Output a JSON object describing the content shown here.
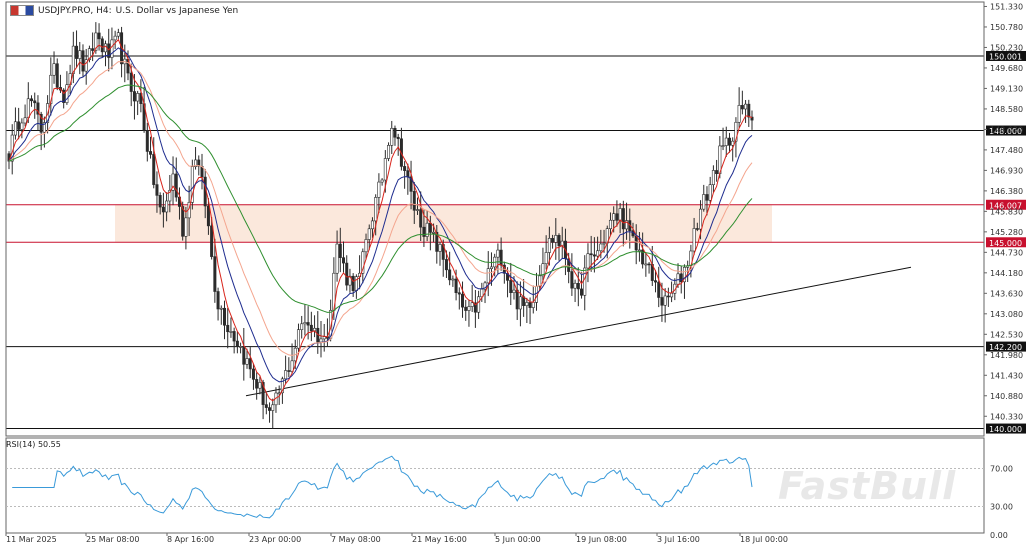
{
  "header": {
    "symbol": "USDJPY.PRO, H4:",
    "description": "U.S. Dollar vs Japanese Yen"
  },
  "watermark": "FastBull",
  "colors": {
    "candle": "#2b2b2b",
    "ma_fast": "#d9251c",
    "ma_mid": "#1f2d8f",
    "ma_salmon": "#f4a58e",
    "ma_slow": "#2f8f2f",
    "zone_fill": "#fbe8dc",
    "resistance_line": "#c8102e",
    "rsi_line": "#3a9ad9"
  },
  "chart_data": {
    "type": "candlestick",
    "symbol": "USDJPY.PRO",
    "timeframe": "H4",
    "ylim": [
      139.8,
      151.45
    ],
    "y_ticks": [
      "151.330",
      "150.780",
      "150.230",
      "149.680",
      "149.130",
      "148.580",
      "148.030",
      "147.480",
      "146.930",
      "146.380",
      "145.830",
      "145.280",
      "144.730",
      "144.180",
      "143.630",
      "143.080",
      "142.530",
      "141.980",
      "141.430",
      "140.880",
      "140.330"
    ],
    "x_ticks": [
      "11 Mar 2025",
      "25 Mar 08:00",
      "8 Apr 16:00",
      "23 Apr 00:00",
      "7 May 08:00",
      "21 May 16:00",
      "5 Jun 00:00",
      "19 Jun 08:00",
      "3 Jul 16:00",
      "18 Jul 00:00"
    ],
    "close_path": [
      147.4,
      148.4,
      148.8,
      148.0,
      149.6,
      149.0,
      150.2,
      149.6,
      150.6,
      150.0,
      150.4,
      149.2,
      148.8,
      147.0,
      145.6,
      146.8,
      145.2,
      147.5,
      146.0,
      143.5,
      142.8,
      142.3,
      141.6,
      141.0,
      140.3,
      141.2,
      142.0,
      143.0,
      142.6,
      142.3,
      144.9,
      144.0,
      143.9,
      145.5,
      146.5,
      148.3,
      147.2,
      146.0,
      145.4,
      145.0,
      144.4,
      143.5,
      143.0,
      143.4,
      144.3,
      144.7,
      143.7,
      143.2,
      143.6,
      144.8,
      145.2,
      144.6,
      143.4,
      144.5,
      144.8,
      145.5,
      145.8,
      145.0,
      144.6,
      143.9,
      143.3,
      143.8,
      144.4,
      145.6,
      146.4,
      147.3,
      147.8,
      148.6,
      148.4
    ],
    "horizontal_levels": [
      {
        "value": 150.001,
        "label": "150.001",
        "style": "black"
      },
      {
        "value": 148.0,
        "label": "148.000",
        "style": "black"
      },
      {
        "value": 146.007,
        "label": "146.007",
        "style": "red"
      },
      {
        "value": 145.0,
        "label": "145.000",
        "style": "red"
      },
      {
        "value": 142.2,
        "label": "142.200",
        "style": "black"
      },
      {
        "value": 140.0,
        "label": "140.000",
        "style": "black"
      }
    ],
    "zone": {
      "from": 145.0,
      "to": 146.007
    },
    "trendline": {
      "start_x": "22 Apr",
      "start_y": 140.88,
      "end_x": "24 Jul",
      "end_y": 144.33
    },
    "rsi": {
      "label": "RSI(14) 50.55",
      "period": 14,
      "value": 50.55,
      "ylim": [
        0,
        100
      ],
      "ticks": [
        "70.00",
        "30.00",
        "0.00"
      ],
      "levels": [
        70,
        30
      ]
    }
  }
}
